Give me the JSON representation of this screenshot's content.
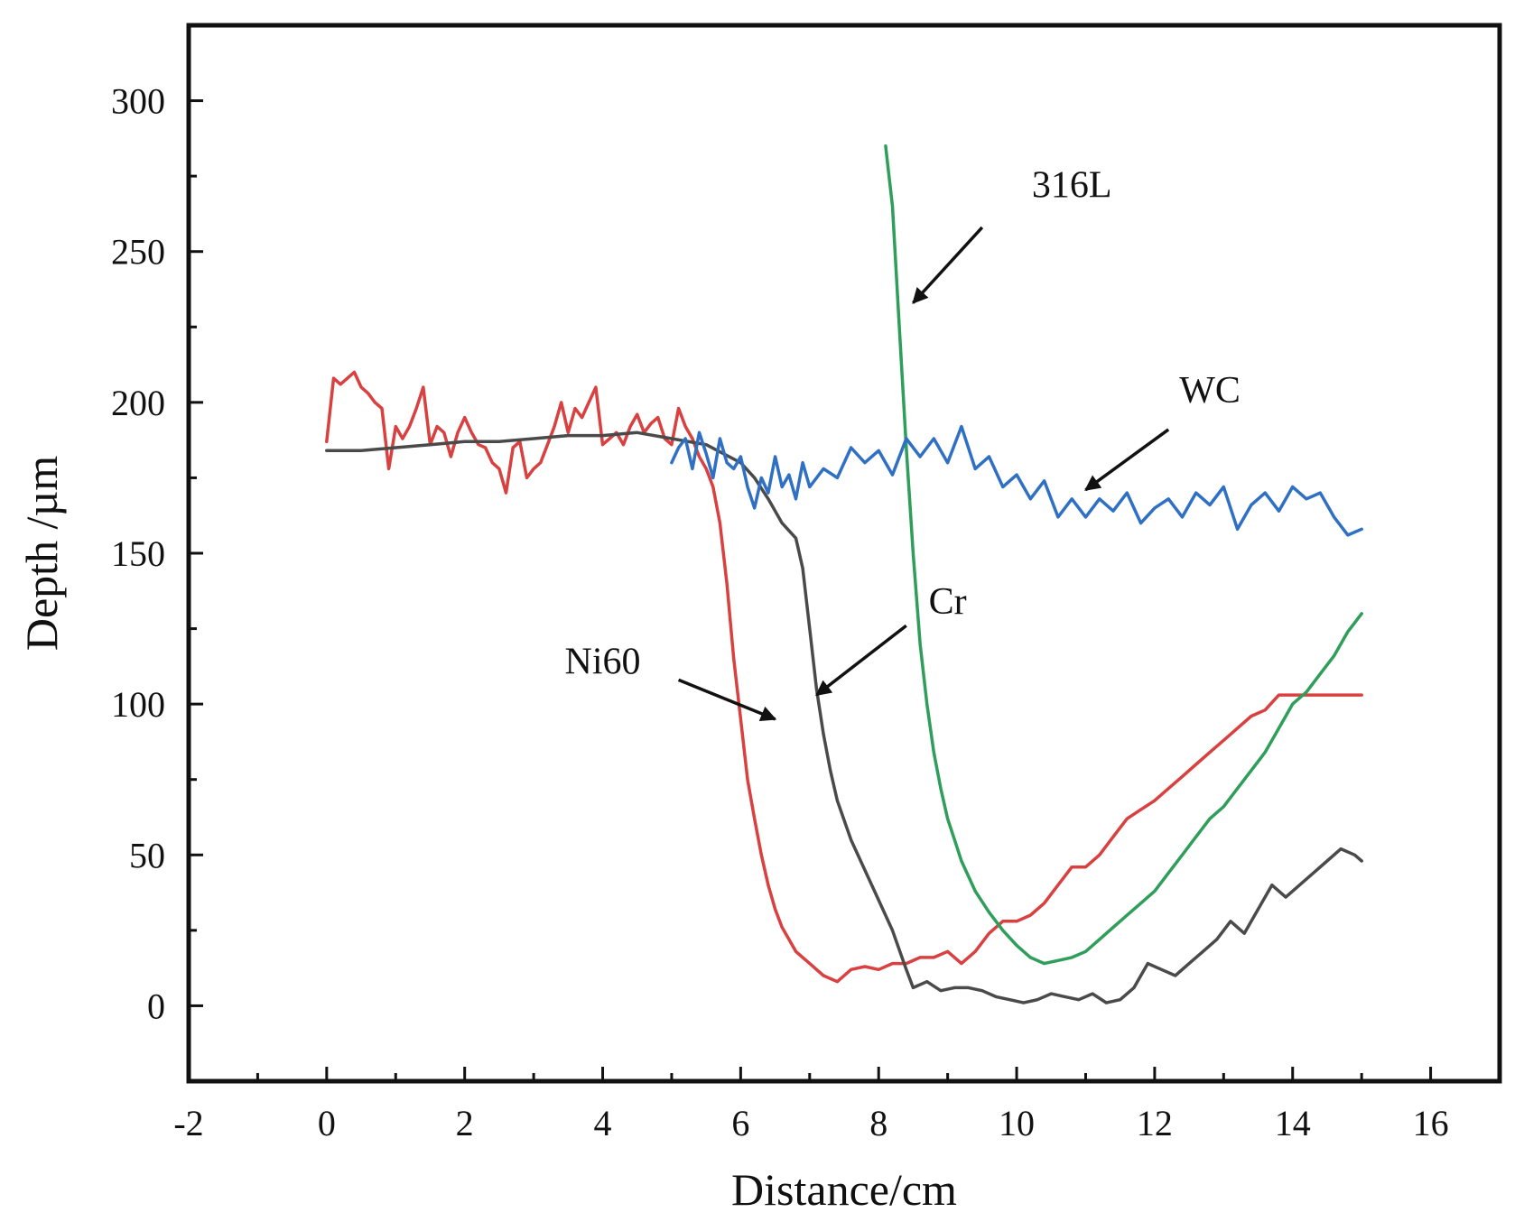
{
  "chart_data": {
    "type": "line",
    "title": "",
    "xlabel": "Distance/cm",
    "ylabel": "Depth /µm",
    "xlim": [
      -2,
      17
    ],
    "ylim": [
      -25,
      325
    ],
    "xticks": [
      -2,
      0,
      2,
      4,
      6,
      8,
      10,
      12,
      14,
      16
    ],
    "xtick_labels": [
      "-2",
      "0",
      "2",
      "4",
      "6",
      "8",
      "10",
      "12",
      "14",
      "16"
    ],
    "yticks": [
      0,
      50,
      100,
      150,
      200,
      250,
      300
    ],
    "ytick_labels": [
      "0",
      "50",
      "100",
      "150",
      "200",
      "250",
      "300"
    ],
    "grid": false,
    "legend": "none",
    "series": [
      {
        "name": "Ni60",
        "color": "#d94040",
        "x": [
          0,
          0.1,
          0.2,
          0.3,
          0.4,
          0.5,
          0.6,
          0.7,
          0.8,
          0.9,
          1.0,
          1.1,
          1.2,
          1.3,
          1.4,
          1.5,
          1.6,
          1.7,
          1.8,
          1.9,
          2.0,
          2.1,
          2.2,
          2.3,
          2.4,
          2.5,
          2.6,
          2.7,
          2.8,
          2.9,
          3.0,
          3.1,
          3.2,
          3.3,
          3.4,
          3.5,
          3.6,
          3.7,
          3.8,
          3.9,
          4.0,
          4.1,
          4.2,
          4.3,
          4.4,
          4.5,
          4.6,
          4.7,
          4.8,
          4.9,
          5.0,
          5.1,
          5.2,
          5.3,
          5.4,
          5.5,
          5.6,
          5.7,
          5.8,
          5.9,
          6.0,
          6.1,
          6.2,
          6.3,
          6.4,
          6.5,
          6.6,
          6.7,
          6.8,
          6.9,
          7.0,
          7.1,
          7.2,
          7.4,
          7.6,
          7.8,
          8.0,
          8.2,
          8.4,
          8.6,
          8.8,
          9.0,
          9.2,
          9.4,
          9.6,
          9.8,
          10.0,
          10.2,
          10.4,
          10.6,
          10.8,
          11.0,
          11.2,
          11.4,
          11.6,
          11.8,
          12.0,
          12.2,
          12.4,
          12.6,
          12.8,
          13.0,
          13.2,
          13.4,
          13.6,
          13.8,
          14.0,
          14.2,
          14.4,
          14.6,
          14.8,
          15.0
        ],
        "y": [
          187,
          208,
          206,
          208,
          210,
          205,
          203,
          200,
          198,
          178,
          192,
          188,
          192,
          198,
          205,
          186,
          192,
          190,
          182,
          190,
          195,
          190,
          186,
          185,
          180,
          178,
          170,
          185,
          187,
          175,
          178,
          180,
          186,
          192,
          200,
          190,
          198,
          195,
          200,
          205,
          186,
          188,
          190,
          186,
          192,
          196,
          190,
          193,
          195,
          188,
          186,
          198,
          192,
          188,
          182,
          178,
          172,
          160,
          140,
          115,
          95,
          75,
          62,
          50,
          40,
          32,
          26,
          22,
          18,
          16,
          14,
          12,
          10,
          8,
          12,
          13,
          12,
          14,
          14,
          16,
          16,
          18,
          14,
          18,
          24,
          28,
          28,
          30,
          34,
          40,
          46,
          46,
          50,
          56,
          62,
          65,
          68,
          72,
          76,
          80,
          84,
          88,
          92,
          96,
          98,
          103,
          103,
          103,
          103,
          103,
          103,
          103
        ]
      },
      {
        "name": "Cr",
        "color": "#4a4a4a",
        "x": [
          0,
          0.5,
          1.0,
          1.5,
          2.0,
          2.5,
          3.0,
          3.5,
          4.0,
          4.5,
          5.0,
          5.5,
          6.0,
          6.2,
          6.4,
          6.6,
          6.8,
          6.9,
          7.0,
          7.1,
          7.2,
          7.3,
          7.4,
          7.6,
          7.8,
          8.0,
          8.2,
          8.4,
          8.5,
          8.7,
          8.9,
          9.1,
          9.3,
          9.5,
          9.7,
          9.9,
          10.1,
          10.3,
          10.5,
          10.7,
          10.9,
          11.1,
          11.3,
          11.5,
          11.7,
          11.9,
          12.1,
          12.3,
          12.5,
          12.7,
          12.9,
          13.1,
          13.3,
          13.5,
          13.7,
          13.9,
          14.1,
          14.3,
          14.5,
          14.7,
          14.9,
          15.0
        ],
        "y": [
          184,
          184,
          185,
          186,
          187,
          187,
          188,
          189,
          189,
          190,
          188,
          186,
          180,
          175,
          168,
          160,
          155,
          145,
          125,
          105,
          90,
          78,
          68,
          55,
          45,
          35,
          25,
          12,
          6,
          8,
          5,
          6,
          6,
          5,
          3,
          2,
          1,
          2,
          4,
          3,
          2,
          4,
          1,
          2,
          6,
          14,
          12,
          10,
          14,
          18,
          22,
          28,
          24,
          32,
          40,
          36,
          40,
          44,
          48,
          52,
          50,
          48
        ]
      },
      {
        "name": "316L",
        "color": "#2e9e5a",
        "x": [
          8.1,
          8.2,
          8.3,
          8.4,
          8.5,
          8.6,
          8.7,
          8.8,
          8.9,
          9.0,
          9.1,
          9.2,
          9.4,
          9.6,
          9.8,
          10.0,
          10.2,
          10.4,
          10.6,
          10.8,
          11.0,
          11.2,
          11.4,
          11.6,
          11.8,
          12.0,
          12.2,
          12.4,
          12.6,
          12.8,
          13.0,
          13.2,
          13.4,
          13.6,
          13.8,
          14.0,
          14.2,
          14.4,
          14.6,
          14.8,
          15.0
        ],
        "y": [
          285,
          265,
          225,
          185,
          150,
          120,
          100,
          84,
          72,
          62,
          55,
          48,
          38,
          31,
          25,
          20,
          16,
          14,
          15,
          16,
          18,
          22,
          26,
          30,
          34,
          38,
          44,
          50,
          56,
          62,
          66,
          72,
          78,
          84,
          92,
          100,
          104,
          110,
          116,
          124,
          130
        ]
      },
      {
        "name": "WC",
        "color": "#2f6fc4",
        "x": [
          5.0,
          5.1,
          5.2,
          5.3,
          5.4,
          5.5,
          5.6,
          5.7,
          5.8,
          5.9,
          6.0,
          6.1,
          6.2,
          6.3,
          6.4,
          6.5,
          6.6,
          6.7,
          6.8,
          6.9,
          7.0,
          7.2,
          7.4,
          7.6,
          7.8,
          8.0,
          8.2,
          8.4,
          8.6,
          8.8,
          9.0,
          9.2,
          9.4,
          9.6,
          9.8,
          10.0,
          10.2,
          10.4,
          10.6,
          10.8,
          11.0,
          11.2,
          11.4,
          11.6,
          11.8,
          12.0,
          12.2,
          12.4,
          12.6,
          12.8,
          13.0,
          13.2,
          13.4,
          13.6,
          13.8,
          14.0,
          14.2,
          14.4,
          14.6,
          14.8,
          15.0
        ],
        "y": [
          180,
          185,
          188,
          178,
          190,
          183,
          175,
          188,
          180,
          178,
          182,
          172,
          165,
          175,
          170,
          182,
          172,
          176,
          168,
          180,
          172,
          178,
          175,
          185,
          180,
          184,
          176,
          188,
          182,
          188,
          180,
          192,
          178,
          182,
          172,
          176,
          168,
          174,
          162,
          168,
          162,
          168,
          164,
          170,
          160,
          165,
          168,
          162,
          170,
          166,
          172,
          158,
          166,
          170,
          164,
          172,
          168,
          170,
          162,
          156,
          158
        ]
      }
    ],
    "annotations": [
      {
        "text": "316L",
        "label_at": [
          10.8,
          268
        ],
        "arrow_from": [
          9.5,
          258
        ],
        "arrow_to": [
          8.5,
          233
        ]
      },
      {
        "text": "WC",
        "label_at": [
          12.8,
          200
        ],
        "arrow_from": [
          12.2,
          191
        ],
        "arrow_to": [
          11.0,
          171
        ]
      },
      {
        "text": "Cr",
        "label_at": [
          9.0,
          130
        ],
        "arrow_from": [
          8.4,
          126
        ],
        "arrow_to": [
          7.1,
          103
        ]
      },
      {
        "text": "Ni60",
        "label_at": [
          4.0,
          110
        ],
        "arrow_from": [
          5.1,
          108
        ],
        "arrow_to": [
          6.5,
          95
        ]
      }
    ]
  }
}
